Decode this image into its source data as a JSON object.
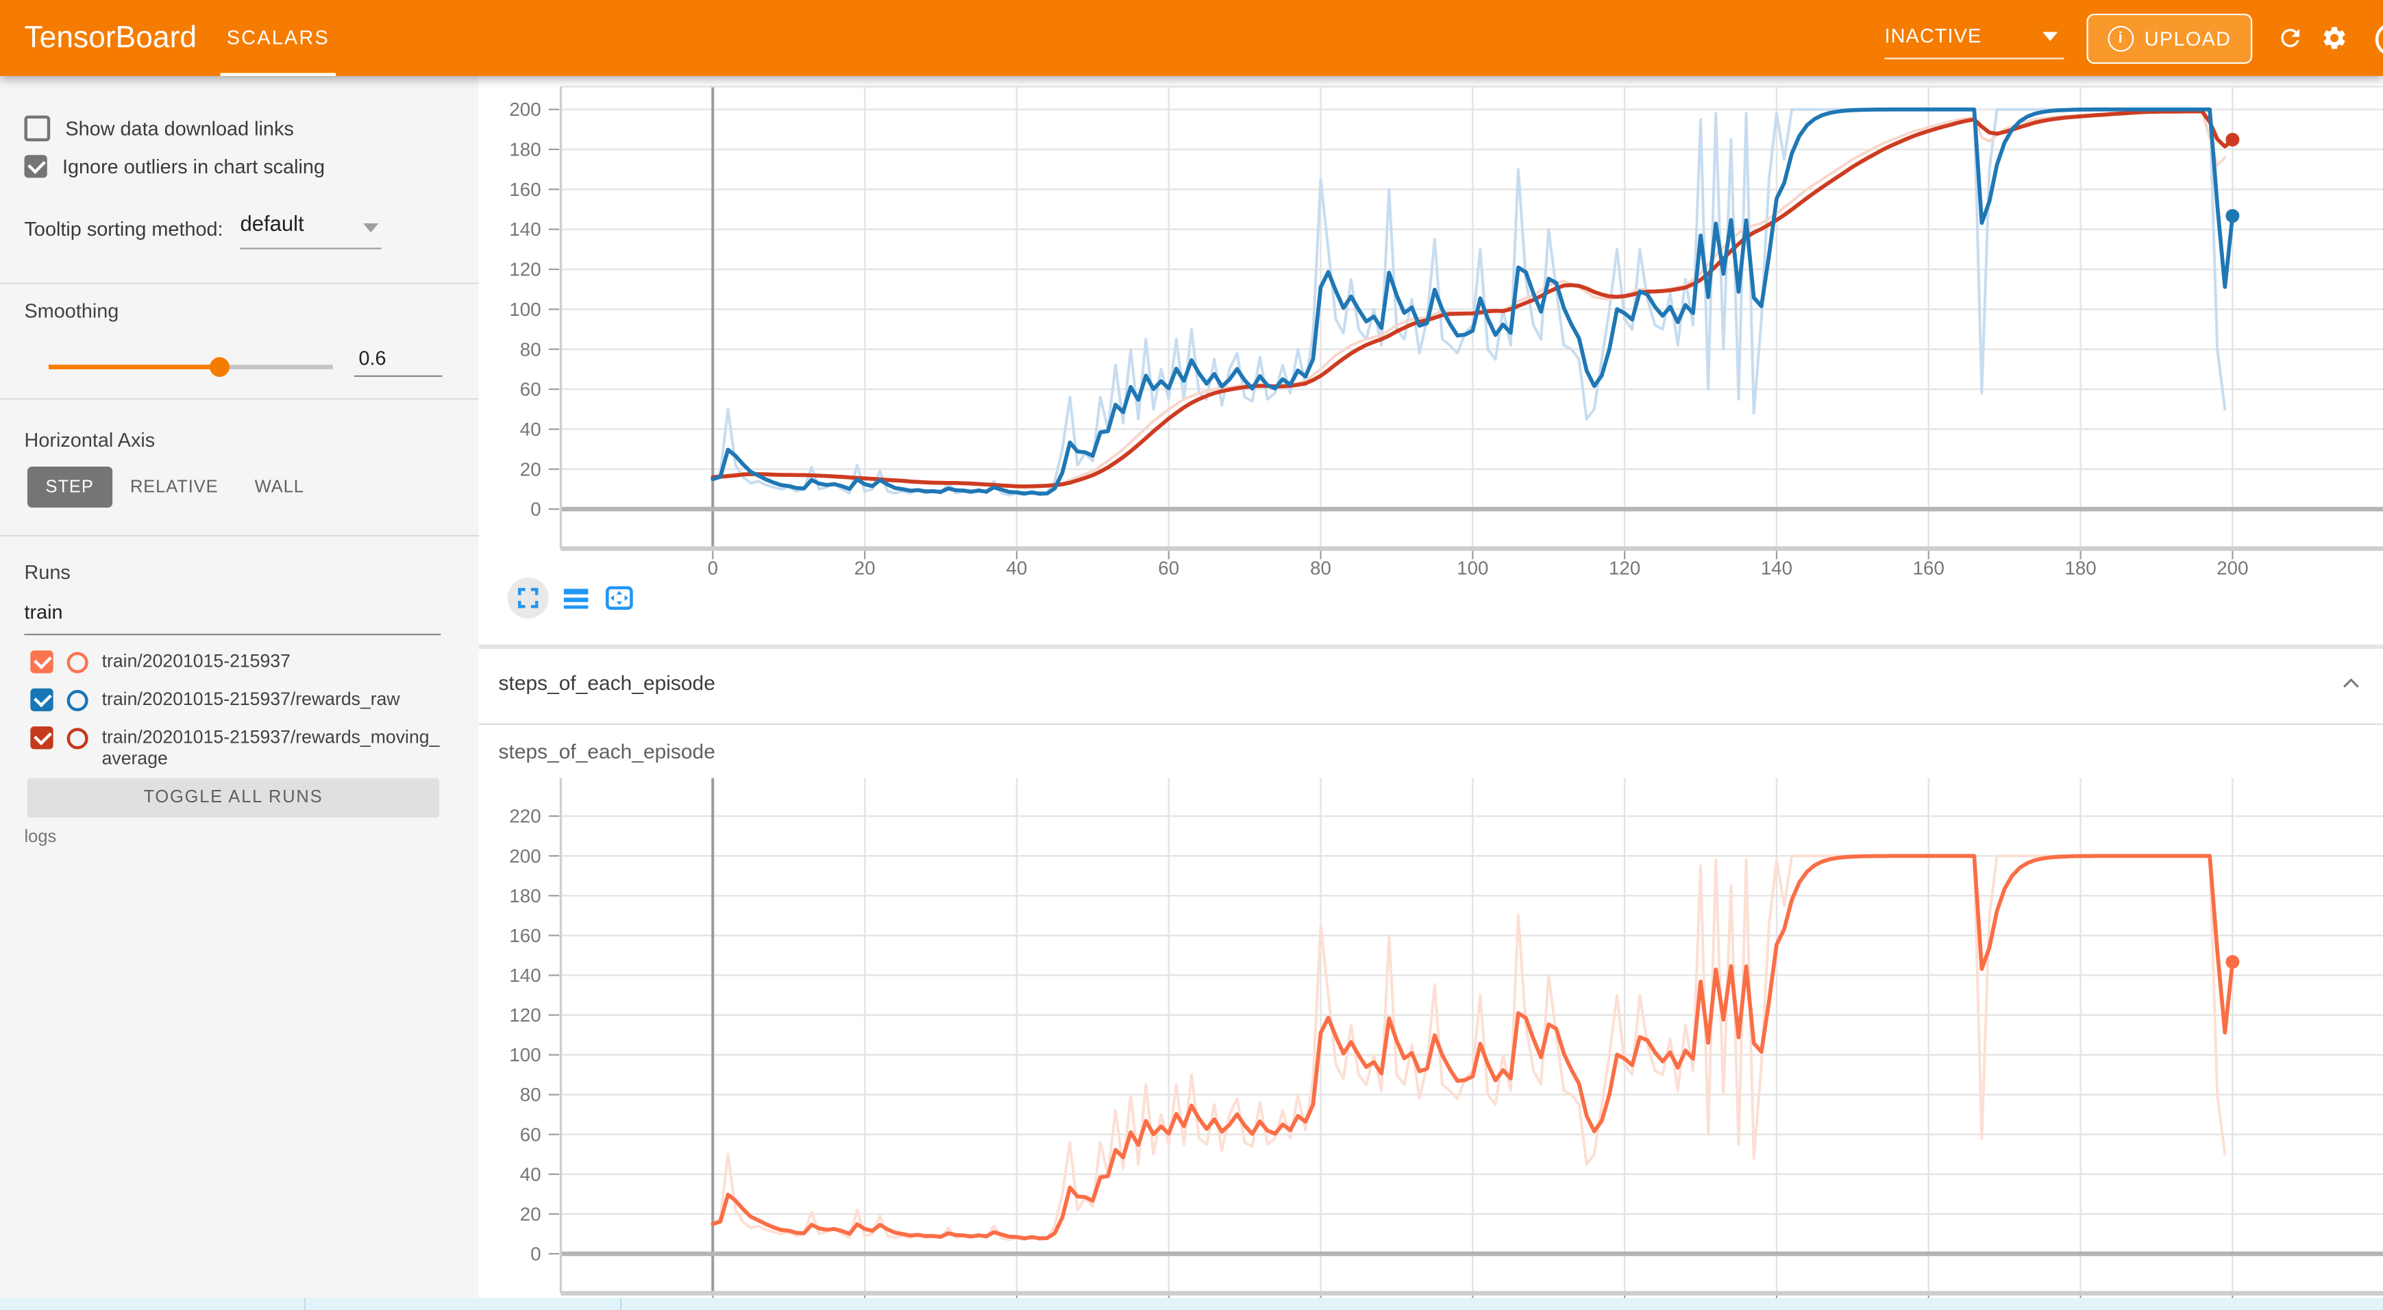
{
  "header": {
    "bg_color": "#f57c00",
    "title": "TensorBoard",
    "tab_label": "SCALARS",
    "status_dropdown": {
      "value": "INACTIVE"
    },
    "upload_label": "UPLOAD"
  },
  "sidebar": {
    "checkboxes": [
      {
        "label": "Show data download links",
        "checked": false
      },
      {
        "label": "Ignore outliers in chart scaling",
        "checked": true
      }
    ],
    "tooltip_sorting": {
      "label": "Tooltip sorting method:",
      "value": "default"
    },
    "smoothing": {
      "label": "Smoothing",
      "value": "0.6",
      "fraction": 0.6
    },
    "horizontal_axis": {
      "label": "Horizontal Axis",
      "options": [
        "STEP",
        "RELATIVE",
        "WALL"
      ],
      "selected": "STEP"
    },
    "runs": {
      "label": "Runs",
      "filter_value": "train",
      "items": [
        {
          "label": "train/20201015-215937",
          "color": "#fa7450",
          "checked": true
        },
        {
          "label": "train/20201015-215937/rewards_raw",
          "color": "#1776b5",
          "checked": true
        },
        {
          "label": "train/20201015-215937/rewards_moving_average",
          "color": "#c5391d",
          "checked": true
        }
      ],
      "toggle_all_label": "TOGGLE ALL RUNS",
      "footer": "logs"
    }
  },
  "section": {
    "title": "steps_of_each_episode"
  },
  "cards": {
    "bottom_title": "steps_of_each_episode"
  },
  "chart_data": [
    {
      "type": "line",
      "id": "chart-top",
      "smoothing": 0.6,
      "x": {
        "ticks": [
          0,
          20,
          40,
          60,
          80,
          100,
          120,
          140,
          160,
          180,
          200
        ],
        "show_labels": true
      },
      "y": {
        "ticks": [
          0,
          20,
          40,
          60,
          80,
          100,
          120,
          140,
          160,
          180,
          200
        ]
      },
      "series": [
        {
          "name": "rewards_raw",
          "data": "raw",
          "color": "#c7dcef",
          "width": 1.8,
          "draw_to": 199
        },
        {
          "name": "rewards_moving_average_raw",
          "data": "moving_average",
          "color": "#f6d7cc",
          "width": 1.8,
          "draw_to": 199
        },
        {
          "name": "rewards_moving_average_smoothed",
          "ema_of": "moving_average",
          "color": "#cd3c21",
          "width": 2.6,
          "end_dot": true
        },
        {
          "name": "rewards_raw_smoothed",
          "ema_of": "raw",
          "color": "#1f77b4",
          "width": 2.6,
          "end_dot": true
        }
      ]
    },
    {
      "type": "line",
      "id": "chart-bottom",
      "title": "steps_of_each_episode",
      "smoothing": 0.6,
      "x": {
        "ticks": [
          0,
          20,
          40,
          60,
          80,
          100,
          120,
          140,
          160,
          180,
          200
        ],
        "show_labels": false
      },
      "y": {
        "ticks": [
          0,
          20,
          40,
          60,
          80,
          100,
          120,
          140,
          160,
          180,
          200,
          220
        ]
      },
      "series": [
        {
          "name": "steps_of_each_episode_raw",
          "data": "raw",
          "color": "#fcdfd4",
          "width": 1.8,
          "draw_to": 199
        },
        {
          "name": "steps_of_each_episode_smoothed",
          "ema_of": "raw",
          "color": "#fa6e46",
          "width": 2.6,
          "end_dot": true
        }
      ]
    }
  ],
  "series_keypoints": {
    "raw": [
      [
        0,
        15
      ],
      [
        1,
        18
      ],
      [
        2,
        50
      ],
      [
        3,
        22
      ],
      [
        4,
        16
      ],
      [
        5,
        13
      ],
      [
        6,
        14
      ],
      [
        7,
        12
      ],
      [
        8,
        11
      ],
      [
        9,
        10
      ],
      [
        10,
        11
      ],
      [
        11,
        9
      ],
      [
        12,
        10
      ],
      [
        13,
        21
      ],
      [
        14,
        10
      ],
      [
        15,
        11
      ],
      [
        16,
        13
      ],
      [
        17,
        10
      ],
      [
        18,
        8
      ],
      [
        19,
        22
      ],
      [
        20,
        9
      ],
      [
        21,
        10
      ],
      [
        22,
        19
      ],
      [
        23,
        9
      ],
      [
        24,
        8
      ],
      [
        25,
        9
      ],
      [
        26,
        8
      ],
      [
        27,
        10
      ],
      [
        28,
        8
      ],
      [
        29,
        9
      ],
      [
        30,
        8
      ],
      [
        31,
        13
      ],
      [
        32,
        8
      ],
      [
        33,
        9
      ],
      [
        34,
        8
      ],
      [
        35,
        10
      ],
      [
        36,
        8
      ],
      [
        37,
        14
      ],
      [
        38,
        8
      ],
      [
        39,
        7
      ],
      [
        40,
        8
      ],
      [
        41,
        7
      ],
      [
        42,
        9
      ],
      [
        43,
        7
      ],
      [
        44,
        8
      ],
      [
        45,
        14
      ],
      [
        46,
        30
      ],
      [
        47,
        56
      ],
      [
        48,
        22
      ],
      [
        49,
        28
      ],
      [
        50,
        24
      ],
      [
        51,
        56
      ],
      [
        52,
        40
      ],
      [
        53,
        72
      ],
      [
        54,
        43
      ],
      [
        55,
        80
      ],
      [
        56,
        45
      ],
      [
        57,
        85
      ],
      [
        58,
        50
      ],
      [
        59,
        70
      ],
      [
        60,
        55
      ],
      [
        61,
        85
      ],
      [
        62,
        55
      ],
      [
        63,
        90
      ],
      [
        64,
        58
      ],
      [
        65,
        55
      ],
      [
        66,
        75
      ],
      [
        67,
        52
      ],
      [
        68,
        70
      ],
      [
        69,
        78
      ],
      [
        70,
        56
      ],
      [
        71,
        54
      ],
      [
        72,
        76
      ],
      [
        73,
        55
      ],
      [
        74,
        58
      ],
      [
        75,
        72
      ],
      [
        76,
        58
      ],
      [
        77,
        80
      ],
      [
        78,
        62
      ],
      [
        79,
        88
      ],
      [
        80,
        165
      ],
      [
        81,
        130
      ],
      [
        82,
        95
      ],
      [
        83,
        88
      ],
      [
        84,
        115
      ],
      [
        85,
        90
      ],
      [
        86,
        85
      ],
      [
        87,
        100
      ],
      [
        88,
        82
      ],
      [
        89,
        160
      ],
      [
        90,
        90
      ],
      [
        91,
        85
      ],
      [
        92,
        105
      ],
      [
        93,
        78
      ],
      [
        94,
        95
      ],
      [
        95,
        135
      ],
      [
        96,
        85
      ],
      [
        97,
        82
      ],
      [
        98,
        78
      ],
      [
        99,
        88
      ],
      [
        100,
        92
      ],
      [
        101,
        130
      ],
      [
        102,
        80
      ],
      [
        103,
        75
      ],
      [
        104,
        100
      ],
      [
        105,
        82
      ],
      [
        106,
        170
      ],
      [
        107,
        115
      ],
      [
        108,
        92
      ],
      [
        109,
        85
      ],
      [
        110,
        140
      ],
      [
        111,
        110
      ],
      [
        112,
        82
      ],
      [
        113,
        80
      ],
      [
        114,
        75
      ],
      [
        115,
        45
      ],
      [
        116,
        50
      ],
      [
        117,
        75
      ],
      [
        118,
        100
      ],
      [
        119,
        130
      ],
      [
        120,
        95
      ],
      [
        121,
        90
      ],
      [
        122,
        130
      ],
      [
        123,
        105
      ],
      [
        124,
        92
      ],
      [
        125,
        90
      ],
      [
        126,
        108
      ],
      [
        127,
        82
      ],
      [
        128,
        115
      ],
      [
        129,
        92
      ],
      [
        130,
        195
      ],
      [
        131,
        60
      ],
      [
        132,
        198
      ],
      [
        133,
        80
      ],
      [
        134,
        185
      ],
      [
        135,
        55
      ],
      [
        136,
        198
      ],
      [
        137,
        48
      ],
      [
        138,
        95
      ],
      [
        139,
        165
      ],
      [
        140,
        198
      ],
      [
        141,
        175
      ],
      [
        142,
        200
      ],
      [
        150,
        200
      ],
      [
        166,
        200
      ],
      [
        167,
        58
      ],
      [
        168,
        170
      ],
      [
        169,
        200
      ],
      [
        196,
        200
      ],
      [
        197,
        200
      ],
      [
        198,
        80
      ],
      [
        199,
        50
      ],
      [
        200,
        200
      ]
    ],
    "moving_average": [
      [
        0,
        16
      ],
      [
        4,
        18
      ],
      [
        8,
        17
      ],
      [
        12,
        17
      ],
      [
        16,
        16
      ],
      [
        20,
        15
      ],
      [
        24,
        14
      ],
      [
        28,
        13
      ],
      [
        32,
        13
      ],
      [
        36,
        12
      ],
      [
        40,
        11
      ],
      [
        44,
        12
      ],
      [
        46,
        13
      ],
      [
        48,
        16
      ],
      [
        50,
        19
      ],
      [
        52,
        24
      ],
      [
        54,
        30
      ],
      [
        56,
        37
      ],
      [
        58,
        44
      ],
      [
        60,
        50
      ],
      [
        62,
        55
      ],
      [
        64,
        58
      ],
      [
        66,
        60
      ],
      [
        68,
        61
      ],
      [
        70,
        62
      ],
      [
        72,
        62
      ],
      [
        74,
        61
      ],
      [
        76,
        62
      ],
      [
        78,
        64
      ],
      [
        80,
        70
      ],
      [
        82,
        77
      ],
      [
        84,
        82
      ],
      [
        86,
        85
      ],
      [
        88,
        87
      ],
      [
        90,
        92
      ],
      [
        92,
        95
      ],
      [
        94,
        96
      ],
      [
        96,
        99
      ],
      [
        98,
        98
      ],
      [
        100,
        98
      ],
      [
        102,
        100
      ],
      [
        104,
        99
      ],
      [
        106,
        104
      ],
      [
        108,
        107
      ],
      [
        110,
        112
      ],
      [
        112,
        114
      ],
      [
        114,
        111
      ],
      [
        116,
        106
      ],
      [
        118,
        105
      ],
      [
        120,
        107
      ],
      [
        122,
        110
      ],
      [
        124,
        109
      ],
      [
        126,
        110
      ],
      [
        128,
        112
      ],
      [
        130,
        118
      ],
      [
        132,
        127
      ],
      [
        134,
        135
      ],
      [
        136,
        141
      ],
      [
        138,
        143
      ],
      [
        140,
        148
      ],
      [
        142,
        154
      ],
      [
        144,
        160
      ],
      [
        146,
        165
      ],
      [
        148,
        170
      ],
      [
        150,
        175
      ],
      [
        152,
        179
      ],
      [
        154,
        183
      ],
      [
        156,
        186
      ],
      [
        158,
        189
      ],
      [
        160,
        191
      ],
      [
        162,
        193
      ],
      [
        164,
        195
      ],
      [
        166,
        196
      ],
      [
        167,
        186
      ],
      [
        168,
        184
      ],
      [
        169,
        187
      ],
      [
        170,
        190
      ],
      [
        172,
        193
      ],
      [
        174,
        195
      ],
      [
        176,
        196
      ],
      [
        180,
        197
      ],
      [
        184,
        198
      ],
      [
        188,
        199
      ],
      [
        196,
        199
      ],
      [
        197,
        186
      ],
      [
        198,
        172
      ],
      [
        199,
        176
      ],
      [
        200,
        190
      ]
    ]
  }
}
